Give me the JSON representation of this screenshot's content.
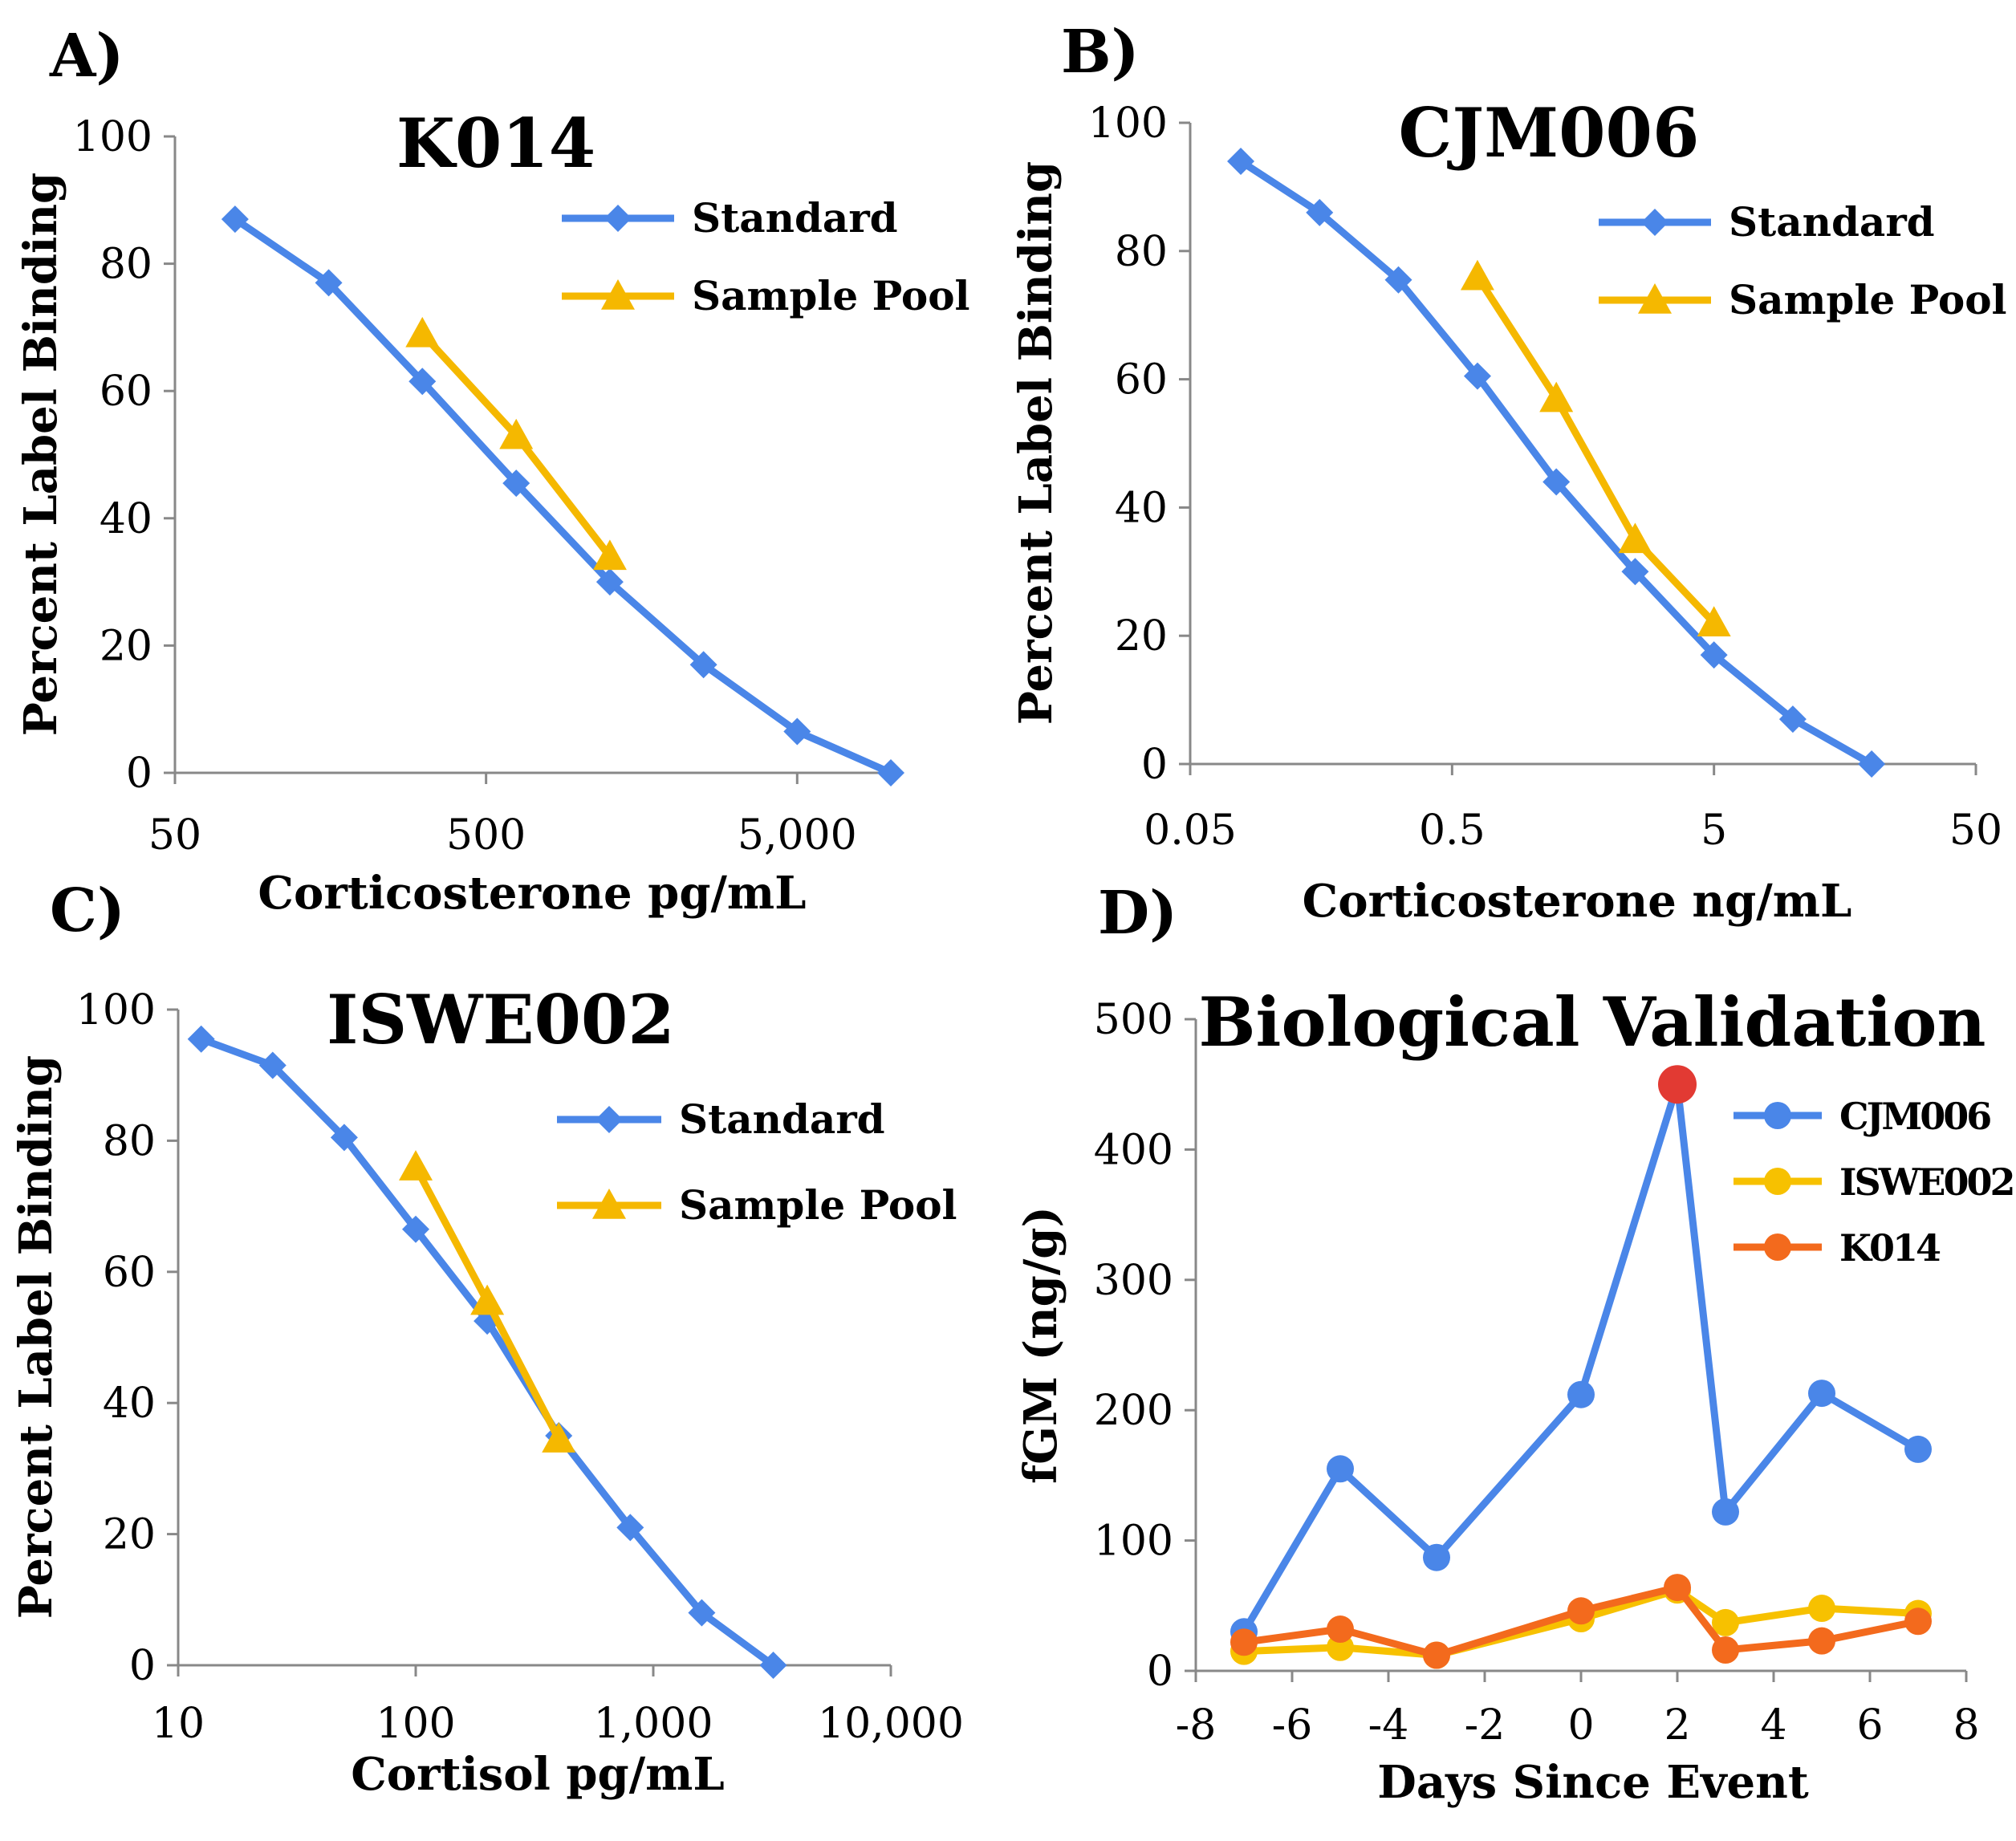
{
  "colors": {
    "standard": "#4A86E8",
    "sample_pool": "#F5B800",
    "cjm006": "#4A86E8",
    "iswe002": "#F7C100",
    "k014": "#F36A1D",
    "highlight": "#E23A33",
    "axis": "#888888"
  },
  "chart_data": [
    {
      "panel_label": "A)",
      "type": "line",
      "title": "K014",
      "xlabel": "Corticosterone pg/mL",
      "ylabel": "Percent Label Binding",
      "xscale": "log",
      "xlim": [
        50,
        10000
      ],
      "ylim": [
        0,
        100
      ],
      "xticks": [
        50,
        500,
        5000
      ],
      "xtick_labels": [
        "50",
        "500",
        "5,000"
      ],
      "yticks": [
        0,
        20,
        40,
        60,
        80,
        100
      ],
      "ytick_labels": [
        "0",
        "20",
        "40",
        "60",
        "80",
        "100"
      ],
      "legend_position": "top-right",
      "series": [
        {
          "name": "Standard",
          "marker": "diamond",
          "x": [
            78,
            156,
            312,
            625,
            1250,
            2500,
            5000,
            10000
          ],
          "y": [
            87,
            77,
            61.5,
            45.5,
            30,
            17,
            6.5,
            0
          ]
        },
        {
          "name": "Sample Pool",
          "marker": "triangle",
          "x": [
            312,
            625,
            1250
          ],
          "y": [
            69,
            53,
            34
          ]
        }
      ]
    },
    {
      "panel_label": "B)",
      "type": "line",
      "title": "CJM006",
      "xlabel": "Corticosterone ng/mL",
      "ylabel": "Percent Label Binding",
      "xscale": "log",
      "xlim": [
        0.05,
        50
      ],
      "ylim": [
        0,
        100
      ],
      "xticks": [
        0.05,
        0.5,
        5,
        50
      ],
      "xtick_labels": [
        "0.05",
        "0.5",
        "5",
        "50"
      ],
      "yticks": [
        0,
        20,
        40,
        60,
        80,
        100
      ],
      "ytick_labels": [
        "0",
        "20",
        "40",
        "60",
        "80",
        "100"
      ],
      "legend_position": "top-right",
      "series": [
        {
          "name": "Standard",
          "marker": "diamond",
          "x": [
            0.078,
            0.156,
            0.312,
            0.625,
            1.25,
            2.5,
            5,
            10,
            20
          ],
          "y": [
            94,
            86,
            75.5,
            60.5,
            44,
            30,
            17,
            7,
            0
          ]
        },
        {
          "name": "Sample Pool",
          "marker": "triangle",
          "x": [
            0.625,
            1.25,
            2.5,
            5
          ],
          "y": [
            76,
            57,
            35,
            22
          ]
        }
      ]
    },
    {
      "panel_label": "C)",
      "type": "line",
      "title": "ISWE002",
      "xlabel": "Cortisol pg/mL",
      "ylabel": "Percent Label Binding",
      "xscale": "log",
      "xlim": [
        10,
        10000
      ],
      "ylim": [
        0,
        100
      ],
      "xticks": [
        10,
        100,
        1000,
        10000
      ],
      "xtick_labels": [
        "10",
        "100",
        "1,000",
        "10,000"
      ],
      "yticks": [
        0,
        20,
        40,
        60,
        80,
        100
      ],
      "ytick_labels": [
        "0",
        "20",
        "40",
        "60",
        "80",
        "100"
      ],
      "legend_position": "top-right",
      "series": [
        {
          "name": "Standard",
          "marker": "diamond",
          "x": [
            12.5,
            25,
            50,
            100,
            200,
            400,
            800,
            1600,
            3200
          ],
          "y": [
            95.5,
            91.5,
            80.5,
            66.5,
            52.5,
            35,
            21,
            8,
            0
          ]
        },
        {
          "name": "Sample Pool",
          "marker": "triangle",
          "x": [
            100,
            200,
            400
          ],
          "y": [
            76,
            55.5,
            34.5
          ]
        }
      ]
    },
    {
      "panel_label": "D)",
      "type": "line",
      "title": "Biological Validation",
      "xlabel": "Days Since Event",
      "ylabel": "fGM (ng/g)",
      "xscale": "linear",
      "xlim": [
        -8,
        8
      ],
      "ylim": [
        0,
        500
      ],
      "xticks": [
        -8,
        -6,
        -4,
        -2,
        0,
        2,
        4,
        6,
        8
      ],
      "xtick_labels": [
        "-8",
        "-6",
        "-4",
        "-2",
        "0",
        "2",
        "4",
        "6",
        "8"
      ],
      "yticks": [
        0,
        100,
        200,
        300,
        400,
        500
      ],
      "ytick_labels": [
        "0",
        "100",
        "200",
        "300",
        "400",
        "500"
      ],
      "legend_position": "top-right",
      "highlight_point": {
        "series": "CJM006",
        "x": 2,
        "y": 450
      },
      "series": [
        {
          "name": "CJM006",
          "marker": "circle",
          "x": [
            -7,
            -5,
            -3,
            0,
            2,
            3,
            5,
            7
          ],
          "y": [
            30,
            155,
            87,
            212,
            450,
            122,
            213,
            170
          ]
        },
        {
          "name": "ISWE002",
          "marker": "circle",
          "x": [
            -7,
            -5,
            -3,
            0,
            2,
            3,
            5,
            7
          ],
          "y": [
            15,
            18,
            12,
            40,
            62,
            37,
            48,
            44
          ]
        },
        {
          "name": "K014",
          "marker": "circle",
          "x": [
            -7,
            -5,
            -3,
            0,
            2,
            3,
            5,
            7
          ],
          "y": [
            22,
            32,
            12,
            46,
            64,
            16,
            23,
            38
          ]
        }
      ]
    }
  ]
}
